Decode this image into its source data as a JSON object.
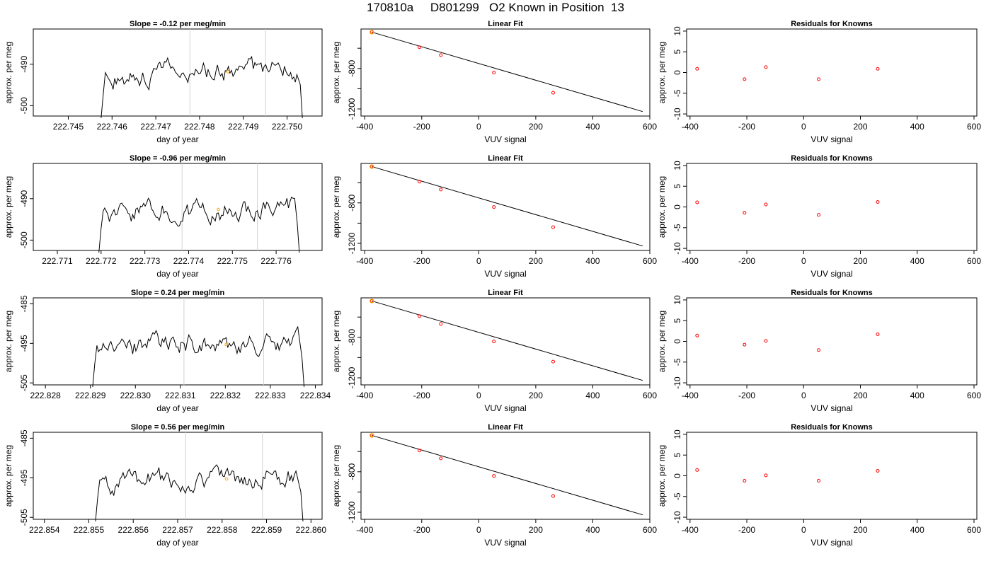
{
  "main_title": "170810a     D801299   O2 Known in Position  13",
  "styles": {
    "trace_color": "#000000",
    "grid_line_color": "#d3d3d3",
    "marker_orange": "#ffa500",
    "residual_red": "#ff0000"
  },
  "chart_data": [
    {
      "type": "line",
      "title": "Slope =  -0.12  per meg/min",
      "xlabel": "day of year",
      "ylabel": "approx. per meg",
      "xlim": [
        222.7442,
        222.7508
      ],
      "ylim": [
        -502.5,
        -481.5
      ],
      "xticks": [
        "222.745",
        "222.746",
        "222.747",
        "222.748",
        "222.749",
        "222.750"
      ],
      "yticks": [
        "-490",
        "-500"
      ],
      "vlines": [
        222.74778,
        222.74951
      ],
      "trace_start": 222.74575,
      "trace_end": 222.75035,
      "trace_level": -491.5,
      "marker": {
        "x": 222.74865,
        "y": -491.8
      }
    },
    {
      "type": "scatter",
      "title": "Linear Fit",
      "xlabel": "VUV signal",
      "ylabel": "approx. per meg",
      "xlim": [
        -413,
        600
      ],
      "ylim": [
        -1270,
        -410
      ],
      "xticks": [
        "-400",
        "-200",
        "0",
        "200",
        "400",
        "600"
      ],
      "yticks": [
        "-800",
        "-1200"
      ],
      "x": [
        -375,
        -208,
        -133,
        53,
        261
      ],
      "y": [
        -441,
        -590,
        -668,
        -841,
        -1040
      ],
      "fit_line": {
        "x": [
          -375,
          575
        ],
        "y": [
          -441,
          -1226
        ]
      }
    },
    {
      "type": "scatter",
      "title": "Residuals for Knowns",
      "xlabel": "VUV signal",
      "ylabel": "approx. per meg",
      "xlim": [
        -412,
        610
      ],
      "ylim": [
        -10.5,
        10.5
      ],
      "xticks": [
        "-400",
        "-200",
        "0",
        "200",
        "400",
        "600"
      ],
      "yticks": [
        "10",
        "5",
        "0",
        "-5",
        "-10"
      ],
      "x": [
        -375,
        -208,
        -133,
        53,
        261
      ],
      "y": [
        0.9,
        -1.6,
        1.3,
        -1.6,
        0.9
      ]
    },
    {
      "type": "line",
      "title": "Slope =  -0.96  per meg/min",
      "xlabel": "day of year",
      "ylabel": "approx. per meg",
      "xlim": [
        222.77045,
        222.77705
      ],
      "ylim": [
        -502.5,
        -481.5
      ],
      "xticks": [
        "222.771",
        "222.772",
        "222.773",
        "222.774",
        "222.775",
        "222.776"
      ],
      "yticks": [
        "-490",
        "-500"
      ],
      "vlines": [
        222.77385,
        222.77557
      ],
      "trace_start": 222.77195,
      "trace_end": 222.77653,
      "trace_level": -492.5,
      "marker": {
        "x": 222.77468,
        "y": -492.6
      }
    },
    {
      "type": "scatter",
      "title": "Linear Fit",
      "xlabel": "VUV signal",
      "ylabel": "approx. per meg",
      "xlim": [
        -413,
        600
      ],
      "ylim": [
        -1270,
        -410
      ],
      "xticks": [
        "-400",
        "-200",
        "0",
        "200",
        "400",
        "600"
      ],
      "yticks": [
        "-800",
        "-1200"
      ],
      "x": [
        -375,
        -208,
        -133,
        53,
        261
      ],
      "y": [
        -441,
        -590,
        -668,
        -841,
        -1040
      ],
      "fit_line": {
        "x": [
          -375,
          575
        ],
        "y": [
          -441,
          -1226
        ]
      }
    },
    {
      "type": "scatter",
      "title": "Residuals for Knowns",
      "xlabel": "VUV signal",
      "ylabel": "approx. per meg",
      "xlim": [
        -412,
        610
      ],
      "ylim": [
        -10.5,
        10.5
      ],
      "xticks": [
        "-400",
        "-200",
        "0",
        "200",
        "400",
        "600"
      ],
      "yticks": [
        "10",
        "5",
        "0",
        "-5",
        "-10"
      ],
      "x": [
        -375,
        -208,
        -133,
        53,
        261
      ],
      "y": [
        1.1,
        -1.4,
        0.6,
        -1.9,
        1.2
      ]
    },
    {
      "type": "line",
      "title": "Slope =  0.24  per meg/min",
      "xlabel": "day of year",
      "ylabel": "approx. per meg",
      "xlim": [
        222.82773,
        222.83415
      ],
      "ylim": [
        -505.5,
        -483.5
      ],
      "xticks": [
        "222.828",
        "222.829",
        "222.830",
        "222.831",
        "222.832",
        "222.833",
        "222.834"
      ],
      "yticks": [
        "-485",
        "-495",
        "-505"
      ],
      "vlines": [
        222.83108,
        222.83285
      ],
      "trace_start": 222.82905,
      "trace_end": 222.83375,
      "trace_level": -495.0,
      "marker": {
        "x": 222.83202,
        "y": -495.3
      }
    },
    {
      "type": "scatter",
      "title": "Linear Fit",
      "xlabel": "VUV signal",
      "ylabel": "approx. per meg",
      "xlim": [
        -413,
        600
      ],
      "ylim": [
        -1270,
        -410
      ],
      "xticks": [
        "-400",
        "-200",
        "0",
        "200",
        "400",
        "600"
      ],
      "yticks": [
        "-800",
        "-1200"
      ],
      "x": [
        -375,
        -208,
        -133,
        53,
        261
      ],
      "y": [
        -441,
        -590,
        -668,
        -841,
        -1040
      ],
      "fit_line": {
        "x": [
          -375,
          575
        ],
        "y": [
          -441,
          -1226
        ]
      }
    },
    {
      "type": "scatter",
      "title": "Residuals for Knowns",
      "xlabel": "VUV signal",
      "ylabel": "approx. per meg",
      "xlim": [
        -412,
        610
      ],
      "ylim": [
        -10.5,
        10.5
      ],
      "xticks": [
        "-400",
        "-200",
        "0",
        "200",
        "400",
        "600"
      ],
      "yticks": [
        "10",
        "5",
        "0",
        "-5",
        "-10"
      ],
      "x": [
        -375,
        -208,
        -133,
        53,
        261
      ],
      "y": [
        1.4,
        -0.8,
        0.1,
        -2.1,
        1.7
      ]
    },
    {
      "type": "line",
      "title": "Slope =  0.56  per meg/min",
      "xlabel": "day of year",
      "ylabel": "approx. per meg",
      "xlim": [
        222.85375,
        222.86025
      ],
      "ylim": [
        -505.5,
        -483.5
      ],
      "xticks": [
        "222.854",
        "222.855",
        "222.856",
        "222.857",
        "222.858",
        "222.859",
        "222.860"
      ],
      "yticks": [
        "-485",
        "-495",
        "-505"
      ],
      "vlines": [
        222.85718,
        222.85891
      ],
      "trace_start": 222.85515,
      "trace_end": 222.85982,
      "trace_level": -495.0,
      "marker": {
        "x": 222.8581,
        "y": -495.3
      }
    },
    {
      "type": "scatter",
      "title": "Linear Fit",
      "xlabel": "VUV signal",
      "ylabel": "approx. per meg",
      "xlim": [
        -413,
        600
      ],
      "ylim": [
        -1270,
        -410
      ],
      "xticks": [
        "-400",
        "-200",
        "0",
        "200",
        "400",
        "600"
      ],
      "yticks": [
        "-800",
        "-1200"
      ],
      "x": [
        -375,
        -208,
        -133,
        53,
        261
      ],
      "y": [
        -441,
        -590,
        -668,
        -841,
        -1040
      ],
      "fit_line": {
        "x": [
          -375,
          575
        ],
        "y": [
          -441,
          -1226
        ]
      }
    },
    {
      "type": "scatter",
      "title": "Residuals for Knowns",
      "xlabel": "VUV signal",
      "ylabel": "approx. per meg",
      "xlim": [
        -412,
        610
      ],
      "ylim": [
        -10.5,
        10.5
      ],
      "xticks": [
        "-400",
        "-200",
        "0",
        "200",
        "400",
        "600"
      ],
      "yticks": [
        "10",
        "5",
        "0",
        "-5",
        "-10"
      ],
      "x": [
        -375,
        -208,
        -133,
        53,
        261
      ],
      "y": [
        1.4,
        -1.2,
        0.1,
        -1.2,
        1.2
      ]
    }
  ]
}
